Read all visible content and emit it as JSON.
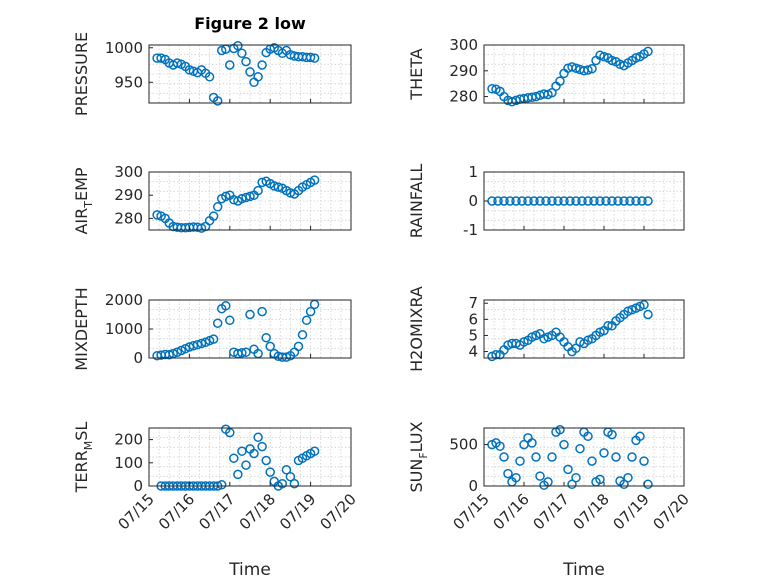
{
  "figure_title": "Figure 2 low",
  "xlabel": "Time",
  "colors": {
    "marker": "#0072BD",
    "axis": "#262626",
    "grid": "#d0d0d0"
  },
  "chart_data": [
    {
      "type": "scatter",
      "ylabel": "PRESSURE",
      "ylim": [
        920,
        1004
      ],
      "yticks": [
        950,
        1000
      ],
      "show_xticklabels": false,
      "title": "Figure 2 low",
      "x": [
        0.2,
        0.3,
        0.4,
        0.5,
        0.6,
        0.7,
        0.8,
        0.9,
        1.0,
        1.1,
        1.2,
        1.3,
        1.4,
        1.5,
        1.6,
        1.7,
        1.8,
        1.9,
        2.0,
        2.1,
        2.2,
        2.3,
        2.4,
        2.5,
        2.6,
        2.7,
        2.8,
        2.9,
        3.0,
        3.1,
        3.2,
        3.3,
        3.4,
        3.5,
        3.6,
        3.7,
        3.8,
        3.9,
        4.0,
        4.1
      ],
      "y": [
        985,
        985,
        983,
        978,
        975,
        978,
        976,
        973,
        968,
        966,
        964,
        968,
        963,
        958,
        928,
        923,
        996,
        998,
        975,
        999,
        1003,
        992,
        980,
        965,
        950,
        958,
        975,
        993,
        998,
        1000,
        996,
        992,
        996,
        990,
        988,
        987,
        987,
        986,
        986,
        985
      ]
    },
    {
      "type": "scatter",
      "ylabel": "THETA",
      "ylim": [
        277.5,
        300
      ],
      "yticks": [
        280,
        290,
        300
      ],
      "show_xticklabels": false,
      "x": [
        0.2,
        0.3,
        0.4,
        0.5,
        0.6,
        0.7,
        0.8,
        0.9,
        1.0,
        1.1,
        1.2,
        1.3,
        1.4,
        1.5,
        1.6,
        1.7,
        1.8,
        1.9,
        2.0,
        2.1,
        2.2,
        2.3,
        2.4,
        2.5,
        2.6,
        2.7,
        2.8,
        2.9,
        3.0,
        3.1,
        3.2,
        3.3,
        3.4,
        3.5,
        3.6,
        3.7,
        3.8,
        3.9,
        4.0,
        4.1
      ],
      "y": [
        283,
        282.8,
        282,
        280,
        278.5,
        278,
        278.5,
        279,
        279.2,
        279.5,
        279.7,
        280,
        280.5,
        281,
        280.8,
        281.5,
        284,
        286,
        289,
        291,
        291.5,
        291,
        290.5,
        290,
        290.3,
        290.8,
        294,
        296,
        295.5,
        295,
        294,
        293.5,
        292.5,
        292,
        293,
        294,
        295,
        295.5,
        296.5,
        297.5
      ]
    },
    {
      "type": "scatter",
      "ylabel": "AIR_T EMP",
      "ylim": [
        275,
        300
      ],
      "yticks": [
        280,
        290,
        300
      ],
      "show_xticklabels": false,
      "x": [
        0.2,
        0.3,
        0.4,
        0.5,
        0.6,
        0.7,
        0.8,
        0.9,
        1.0,
        1.1,
        1.2,
        1.3,
        1.4,
        1.5,
        1.6,
        1.7,
        1.8,
        1.9,
        2.0,
        2.1,
        2.2,
        2.3,
        2.4,
        2.5,
        2.6,
        2.7,
        2.8,
        2.9,
        3.0,
        3.1,
        3.2,
        3.3,
        3.4,
        3.5,
        3.6,
        3.7,
        3.8,
        3.9,
        4.0,
        4.1
      ],
      "y": [
        281.5,
        281,
        280,
        278,
        276.5,
        276.2,
        276,
        276,
        276.1,
        276.3,
        276.2,
        275.8,
        276.5,
        279,
        281,
        285,
        288.5,
        289.5,
        290,
        288,
        287.5,
        288.5,
        289,
        289.5,
        290,
        292,
        295.5,
        296,
        295,
        294,
        293.5,
        293,
        292,
        291,
        290.5,
        292,
        293.5,
        294.5,
        295.5,
        296.5
      ]
    },
    {
      "type": "scatter",
      "ylabel": "RAINFALL",
      "ylim": [
        -1,
        1
      ],
      "yticks": [
        -1,
        0,
        1
      ],
      "show_xticklabels": false,
      "x": [
        0.2,
        0.35,
        0.5,
        0.65,
        0.8,
        0.95,
        1.1,
        1.25,
        1.4,
        1.55,
        1.7,
        1.85,
        2.0,
        2.15,
        2.3,
        2.45,
        2.6,
        2.75,
        2.9,
        3.05,
        3.2,
        3.35,
        3.5,
        3.65,
        3.8,
        3.95,
        4.1
      ],
      "y": [
        0,
        0,
        0,
        0,
        0,
        0,
        0,
        0,
        0,
        0,
        0,
        0,
        0,
        0,
        0,
        0,
        0,
        0,
        0,
        0,
        0,
        0,
        0,
        0,
        0,
        0,
        0
      ]
    },
    {
      "type": "scatter",
      "ylabel": "MIXDEPTH",
      "ylim": [
        0,
        2000
      ],
      "yticks": [
        0,
        1000,
        2000
      ],
      "show_xticklabels": false,
      "x": [
        0.2,
        0.3,
        0.4,
        0.5,
        0.6,
        0.7,
        0.8,
        0.9,
        1.0,
        1.1,
        1.2,
        1.3,
        1.4,
        1.5,
        1.6,
        1.7,
        1.8,
        1.9,
        2.0,
        2.1,
        2.2,
        2.3,
        2.4,
        2.5,
        2.6,
        2.7,
        2.8,
        2.9,
        3.0,
        3.1,
        3.2,
        3.3,
        3.4,
        3.5,
        3.6,
        3.7,
        3.8,
        3.9,
        4.0,
        4.1
      ],
      "y": [
        80,
        100,
        120,
        110,
        150,
        200,
        260,
        320,
        380,
        420,
        460,
        500,
        540,
        600,
        650,
        1200,
        1700,
        1800,
        1300,
        200,
        150,
        180,
        200,
        1500,
        300,
        150,
        1600,
        700,
        400,
        150,
        60,
        30,
        30,
        80,
        200,
        400,
        800,
        1300,
        1600,
        1850
      ]
    },
    {
      "type": "scatter",
      "ylabel": "H2OMIXRA",
      "ylim": [
        3.6,
        7.2
      ],
      "yticks": [
        4,
        5,
        6,
        7
      ],
      "show_xticklabels": false,
      "x": [
        0.2,
        0.3,
        0.4,
        0.5,
        0.6,
        0.7,
        0.8,
        0.9,
        1.0,
        1.1,
        1.2,
        1.3,
        1.4,
        1.5,
        1.6,
        1.7,
        1.8,
        1.9,
        2.0,
        2.1,
        2.2,
        2.3,
        2.4,
        2.5,
        2.6,
        2.7,
        2.8,
        2.9,
        3.0,
        3.1,
        3.2,
        3.3,
        3.4,
        3.5,
        3.6,
        3.7,
        3.8,
        3.9,
        4.0,
        4.1
      ],
      "y": [
        3.7,
        3.8,
        3.8,
        4.1,
        4.4,
        4.5,
        4.5,
        4.4,
        4.6,
        4.7,
        4.9,
        5.0,
        5.1,
        4.8,
        4.9,
        5.0,
        5.2,
        4.9,
        4.6,
        4.3,
        4.0,
        4.2,
        4.6,
        4.5,
        4.7,
        4.8,
        5.0,
        5.2,
        5.3,
        5.6,
        5.6,
        5.9,
        6.1,
        6.3,
        6.5,
        6.6,
        6.7,
        6.8,
        6.9,
        6.3
      ]
    },
    {
      "type": "scatter",
      "ylabel": "TERR_M SL",
      "ylim": [
        0,
        250
      ],
      "yticks": [
        0,
        100,
        200
      ],
      "show_xticklabels": true,
      "xticks": [
        0,
        1,
        2,
        3,
        4,
        5
      ],
      "xticklabels": [
        "07/15",
        "07/16",
        "07/17",
        "07/18",
        "07/19",
        "07/20"
      ],
      "x": [
        0.3,
        0.4,
        0.5,
        0.6,
        0.7,
        0.8,
        0.9,
        1.0,
        1.1,
        1.2,
        1.3,
        1.4,
        1.5,
        1.6,
        1.7,
        1.8,
        1.9,
        2.0,
        2.1,
        2.2,
        2.3,
        2.4,
        2.5,
        2.6,
        2.7,
        2.8,
        2.9,
        3.0,
        3.1,
        3.2,
        3.3,
        3.4,
        3.5,
        3.6,
        3.7,
        3.8,
        3.9,
        4.0,
        4.1
      ],
      "y": [
        0,
        0,
        0,
        0,
        0,
        0,
        0,
        0,
        0,
        0,
        0,
        0,
        0,
        0,
        0,
        5,
        245,
        230,
        120,
        50,
        150,
        90,
        160,
        140,
        210,
        170,
        110,
        60,
        20,
        0,
        10,
        70,
        40,
        10,
        110,
        120,
        130,
        140,
        150
      ]
    },
    {
      "type": "scatter",
      "ylabel": "SUN_F LUX",
      "ylim": [
        0,
        700
      ],
      "yticks": [
        0,
        500
      ],
      "show_xticklabels": true,
      "xticks": [
        0,
        1,
        2,
        3,
        4,
        5
      ],
      "xticklabels": [
        "07/15",
        "07/16",
        "07/17",
        "07/18",
        "07/19",
        "07/20"
      ],
      "x": [
        0.2,
        0.3,
        0.4,
        0.5,
        0.6,
        0.7,
        0.8,
        0.9,
        1.0,
        1.1,
        1.2,
        1.3,
        1.4,
        1.5,
        1.6,
        1.7,
        1.8,
        1.9,
        2.0,
        2.1,
        2.2,
        2.3,
        2.4,
        2.5,
        2.6,
        2.7,
        2.8,
        2.9,
        3.0,
        3.1,
        3.2,
        3.3,
        3.4,
        3.5,
        3.6,
        3.7,
        3.8,
        3.9,
        4.0,
        4.1
      ],
      "y": [
        500,
        520,
        480,
        350,
        150,
        50,
        100,
        300,
        500,
        580,
        520,
        350,
        120,
        10,
        50,
        350,
        650,
        680,
        500,
        200,
        20,
        100,
        450,
        650,
        600,
        300,
        50,
        80,
        400,
        650,
        620,
        350,
        60,
        20,
        100,
        350,
        550,
        600,
        300,
        20
      ]
    }
  ]
}
